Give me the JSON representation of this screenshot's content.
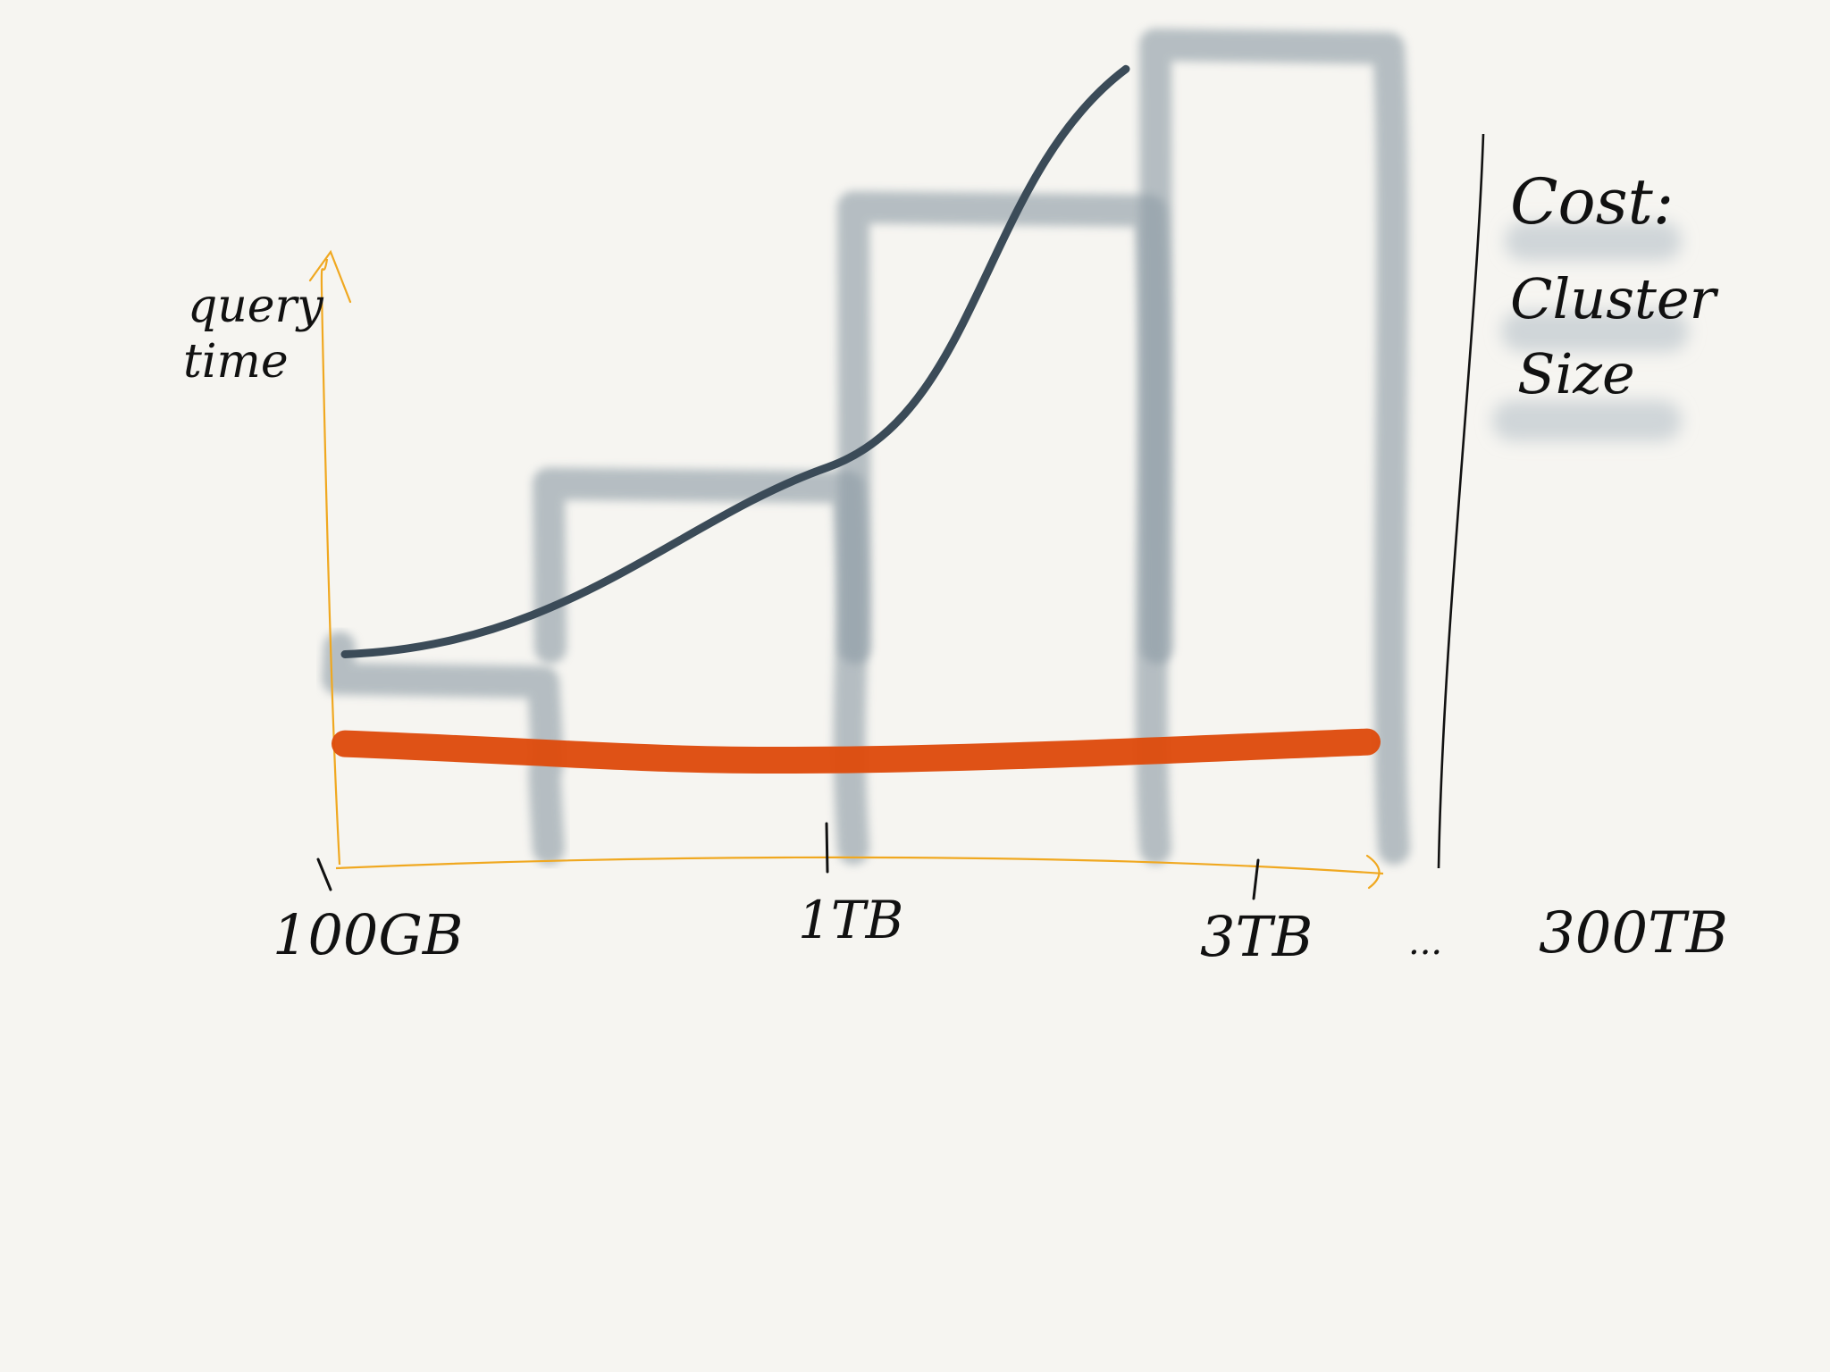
{
  "chart_data": {
    "type": "line",
    "title": "",
    "xlabel": "",
    "ylabel": "query time",
    "x_categories": [
      "100GB",
      "1TB",
      "3TB",
      "...",
      "300TB"
    ],
    "ylim": [
      0,
      1
    ],
    "series": [
      {
        "name": "",
        "color": "#3b4b58",
        "x": [
          "100GB",
          "1TB",
          "3TB"
        ],
        "y": [
          0.25,
          0.48,
          0.97
        ],
        "shape": "rising curve"
      },
      {
        "name": "",
        "color": "#de4b0d",
        "x": [
          "100GB",
          "1TB",
          "3TB"
        ],
        "y": [
          0.14,
          0.12,
          0.14
        ],
        "shape": "nearly flat"
      }
    ],
    "bars": {
      "color": "#8e9ca6",
      "levels": [
        {
          "label": "100GB",
          "value": 0.22
        },
        {
          "label": "1TB",
          "value": 0.46
        },
        {
          "label": "3TB",
          "value": 0.8
        },
        {
          "label": "300TB",
          "value": 1.0
        }
      ]
    },
    "legend_position": "right",
    "legend_items": [
      "Cost:",
      "Cluster",
      "Size"
    ],
    "grid": false
  }
}
